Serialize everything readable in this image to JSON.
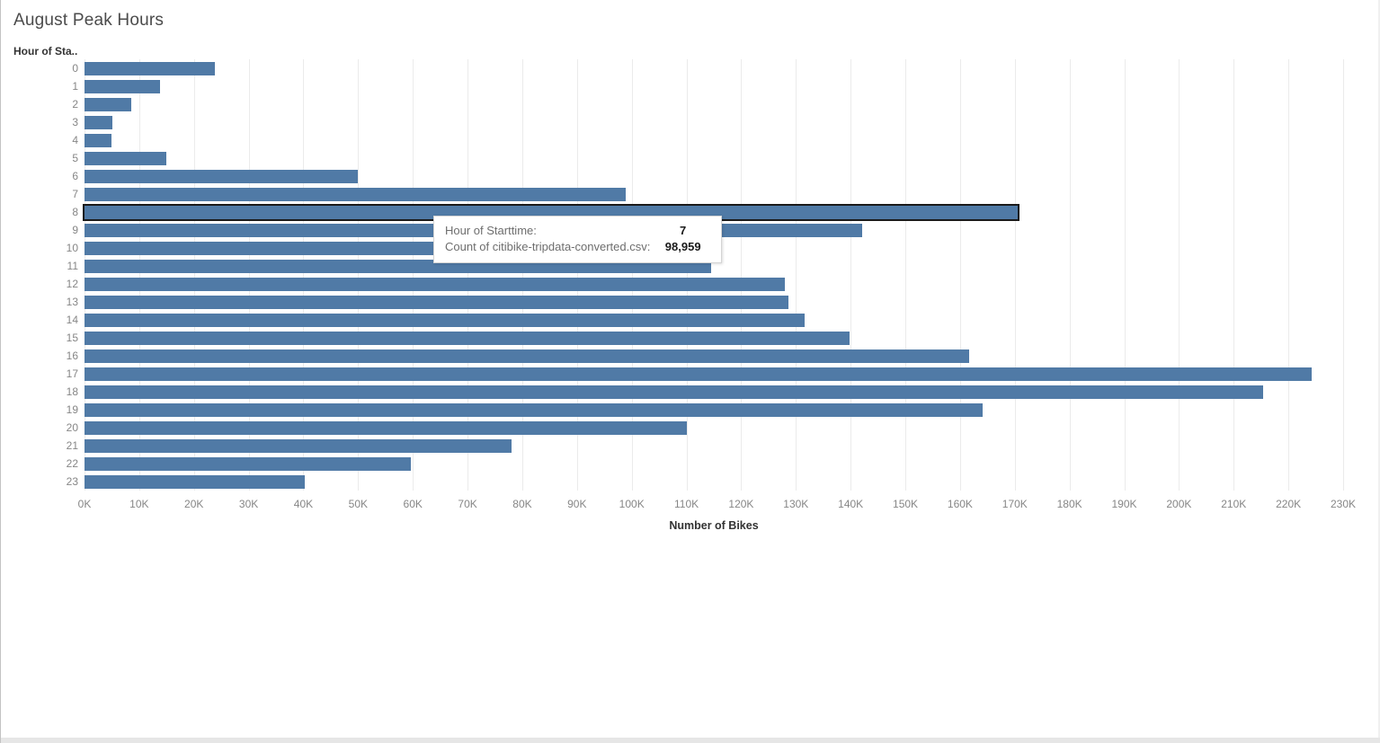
{
  "header": {
    "title": "August Peak Hours"
  },
  "chart": {
    "row_axis_header": "Hour of Sta..",
    "xlabel": "Number of Bikes"
  },
  "chart_data": {
    "type": "bar",
    "orientation": "horizontal",
    "title": "August Peak Hours",
    "ylabel": "Hour of Sta..",
    "xlabel": "Number of Bikes",
    "categories": [
      "0",
      "1",
      "2",
      "3",
      "4",
      "5",
      "6",
      "7",
      "8",
      "9",
      "10",
      "11",
      "12",
      "13",
      "14",
      "15",
      "16",
      "17",
      "18",
      "19",
      "20",
      "21",
      "22",
      "23"
    ],
    "values": [
      23800,
      13800,
      8500,
      5100,
      4900,
      14900,
      49900,
      98959,
      170500,
      142100,
      110000,
      114500,
      128000,
      128600,
      131600,
      139800,
      161600,
      224200,
      215400,
      164100,
      110000,
      78100,
      59600,
      40200
    ],
    "xlim": [
      0,
      230000
    ],
    "x_tick_values": [
      0,
      10000,
      20000,
      30000,
      40000,
      50000,
      60000,
      70000,
      80000,
      90000,
      100000,
      110000,
      120000,
      130000,
      140000,
      150000,
      160000,
      170000,
      180000,
      190000,
      200000,
      210000,
      220000,
      230000
    ],
    "x_tick_labels": [
      "0K",
      "10K",
      "20K",
      "30K",
      "40K",
      "50K",
      "60K",
      "70K",
      "80K",
      "90K",
      "100K",
      "110K",
      "120K",
      "130K",
      "140K",
      "150K",
      "160K",
      "170K",
      "180K",
      "190K",
      "200K",
      "210K",
      "220K",
      "230K"
    ],
    "grid": true,
    "legend": false,
    "bar_color": "#507aa6",
    "highlighted_category": "8",
    "highlight_border_color": "#1a1a1a"
  },
  "tooltip": {
    "rows": [
      {
        "label": "Hour of Starttime:",
        "value": "7"
      },
      {
        "label": "Count of citibike-tripdata-converted.csv:",
        "value": "98,959"
      }
    ]
  }
}
